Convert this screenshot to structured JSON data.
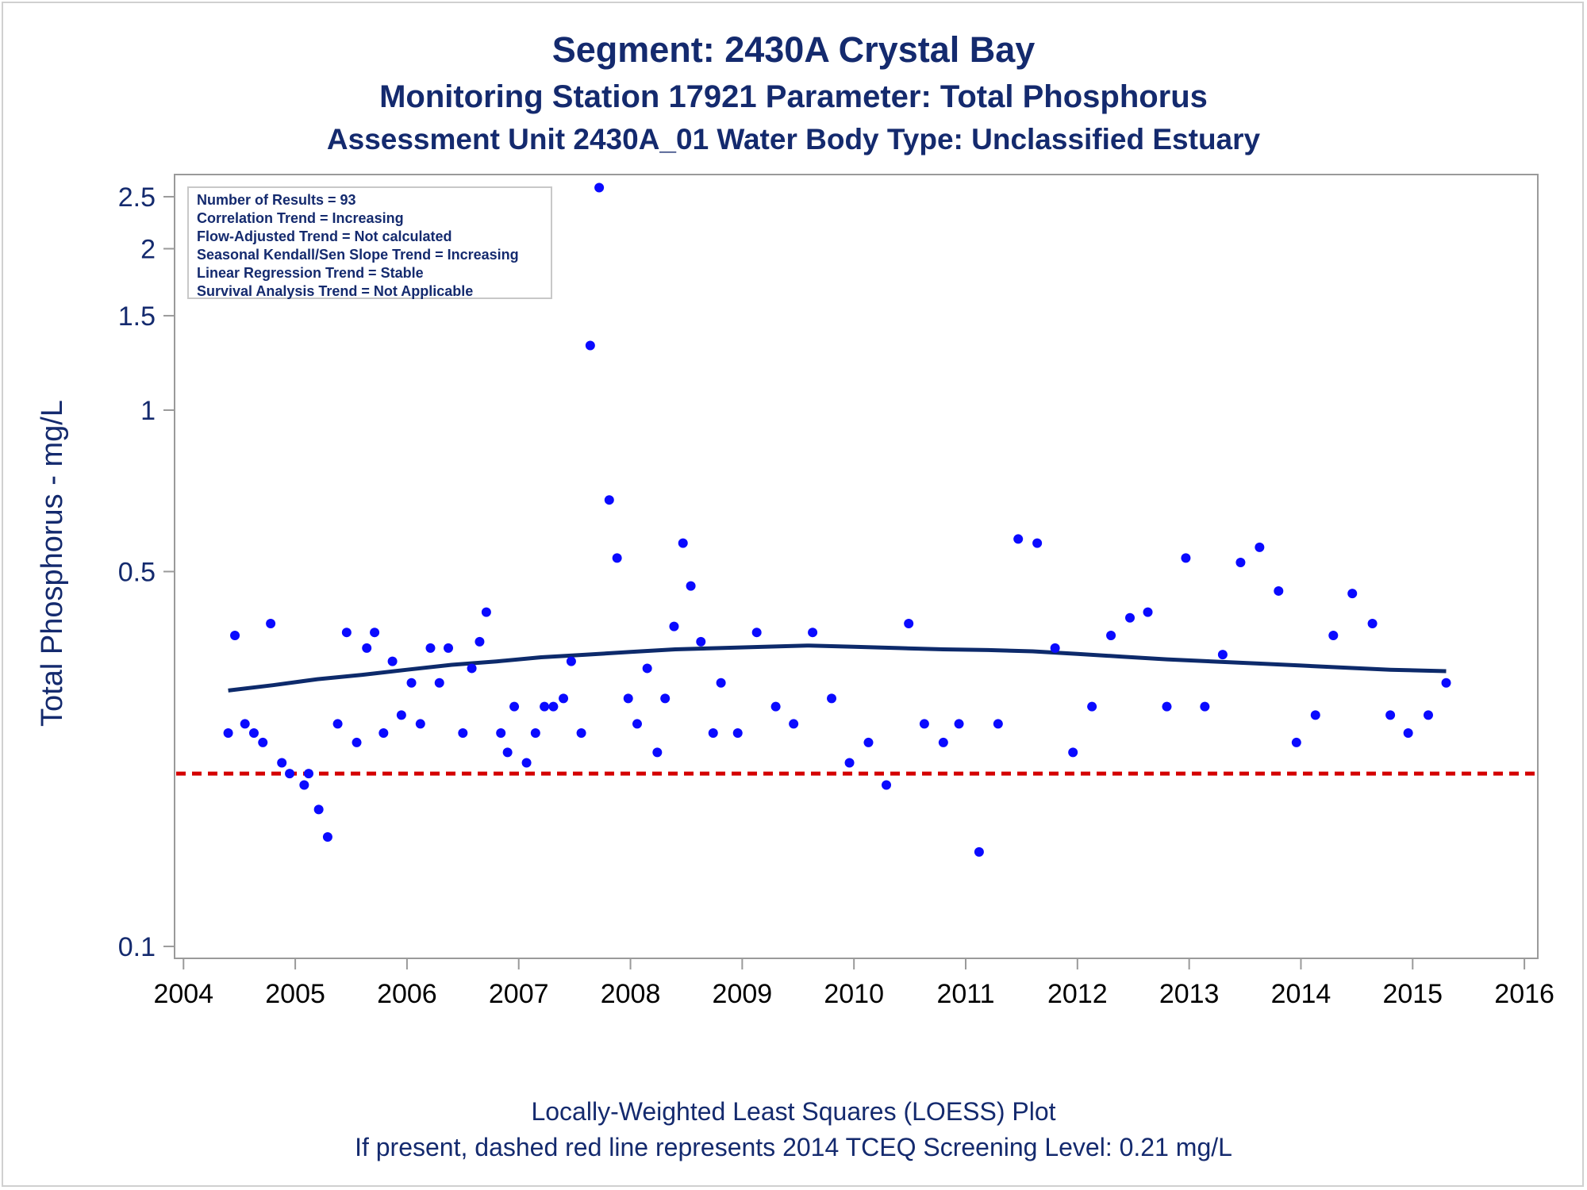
{
  "titles": {
    "line1": "Segment: 2430A  Crystal Bay",
    "line2": "Monitoring Station 17921 Parameter: Total Phosphorus",
    "line3": "Assessment Unit 2430A_01   Water Body Type: Unclassified Estuary"
  },
  "footnotes": {
    "line1": "Locally-Weighted Least Squares (LOESS) Plot",
    "line2": "If present, dashed red line represents 2014 TCEQ Screening Level: 0.21 mg/L"
  },
  "stats_box": {
    "lines": [
      "Number of Results = 93",
      "Correlation Trend = Increasing",
      "Flow-Adjusted Trend = Not calculated",
      "Seasonal Kendall/Sen Slope Trend = Increasing",
      "Linear Regression Trend = Stable",
      "Survival Analysis Trend = Not Applicable"
    ]
  },
  "colors": {
    "title_text": "#142a6e",
    "points": "#0a0aff",
    "loess": "#0d2a6b",
    "screening_line": "#d40000",
    "axis": "#9a9a9a"
  },
  "chart_data": {
    "type": "scatter",
    "ylabel": "Total Phosphorus - mg/L",
    "xlabel": "",
    "yscale": "log",
    "ylim": [
      0.095,
      2.75
    ],
    "xlim": [
      2003.92,
      2016.12
    ],
    "y_ticks": [
      0.1,
      0.5,
      1,
      1.5,
      2,
      2.5
    ],
    "y_tick_labels": [
      "0.1",
      "0.5",
      "1",
      "1.5",
      "2",
      "2.5"
    ],
    "x_ticks": [
      2004,
      2005,
      2006,
      2007,
      2008,
      2009,
      2010,
      2011,
      2012,
      2013,
      2014,
      2015,
      2016
    ],
    "x_tick_labels": [
      "2004",
      "2005",
      "2006",
      "2007",
      "2008",
      "2009",
      "2010",
      "2011",
      "2012",
      "2013",
      "2014",
      "2015",
      "2016"
    ],
    "grid": false,
    "screening_level": 0.21,
    "series": [
      {
        "type": "scatter",
        "x": [
          2004.4,
          2004.46,
          2004.55,
          2004.63,
          2004.71,
          2004.78,
          2004.88,
          2004.95,
          2005.08,
          2005.12,
          2005.21,
          2005.29,
          2005.38,
          2005.46,
          2005.55,
          2005.64,
          2005.71,
          2005.79,
          2005.87,
          2005.95,
          2006.04,
          2006.12,
          2006.21,
          2006.29,
          2006.37,
          2006.5,
          2006.58,
          2006.65,
          2006.71,
          2006.84,
          2006.9,
          2006.96,
          2007.07,
          2007.15,
          2007.23,
          2007.31,
          2007.4,
          2007.47,
          2007.56,
          2007.64,
          2007.72,
          2007.81,
          2007.88,
          2007.98,
          2008.06,
          2008.15,
          2008.24,
          2008.31,
          2008.39,
          2008.47,
          2008.54,
          2008.63,
          2008.74,
          2008.81,
          2008.96,
          2009.13,
          2009.3,
          2009.46,
          2009.63,
          2009.8,
          2009.96,
          2010.13,
          2010.29,
          2010.49,
          2010.63,
          2010.8,
          2010.94,
          2011.12,
          2011.29,
          2011.47,
          2011.64,
          2011.8,
          2011.96,
          2012.13,
          2012.3,
          2012.47,
          2012.63,
          2012.8,
          2012.97,
          2013.14,
          2013.3,
          2013.46,
          2013.63,
          2013.8,
          2013.96,
          2014.13,
          2014.29,
          2014.46,
          2014.64,
          2014.8,
          2014.96,
          2015.14,
          2015.3
        ],
        "y": [
          0.25,
          0.38,
          0.26,
          0.25,
          0.24,
          0.4,
          0.22,
          0.21,
          0.2,
          0.21,
          0.18,
          0.16,
          0.26,
          0.385,
          0.24,
          0.36,
          0.385,
          0.25,
          0.34,
          0.27,
          0.31,
          0.26,
          0.36,
          0.31,
          0.36,
          0.25,
          0.33,
          0.37,
          0.42,
          0.25,
          0.23,
          0.28,
          0.22,
          0.25,
          0.28,
          0.28,
          0.29,
          0.34,
          0.25,
          1.32,
          2.6,
          0.68,
          0.53,
          0.29,
          0.26,
          0.33,
          0.23,
          0.29,
          0.395,
          0.565,
          0.47,
          0.37,
          0.25,
          0.31,
          0.25,
          0.385,
          0.28,
          0.26,
          0.385,
          0.29,
          0.22,
          0.24,
          0.2,
          0.4,
          0.26,
          0.24,
          0.26,
          0.15,
          0.26,
          0.575,
          0.565,
          0.36,
          0.23,
          0.28,
          0.38,
          0.41,
          0.42,
          0.28,
          0.53,
          0.28,
          0.35,
          0.52,
          0.555,
          0.46,
          0.24,
          0.27,
          0.38,
          0.455,
          0.4,
          0.27,
          0.25,
          0.27,
          0.31
        ]
      },
      {
        "name": "LOESS",
        "type": "line",
        "x": [
          2004.4,
          2004.8,
          2005.2,
          2005.6,
          2006.0,
          2006.4,
          2006.8,
          2007.2,
          2007.6,
          2008.0,
          2008.4,
          2008.8,
          2009.2,
          2009.6,
          2010.0,
          2010.4,
          2010.8,
          2011.2,
          2011.6,
          2012.0,
          2012.4,
          2012.8,
          2013.2,
          2013.6,
          2014.0,
          2014.4,
          2014.8,
          2015.3
        ],
        "y": [
          0.3,
          0.307,
          0.315,
          0.321,
          0.328,
          0.335,
          0.34,
          0.346,
          0.35,
          0.354,
          0.358,
          0.36,
          0.362,
          0.364,
          0.362,
          0.36,
          0.358,
          0.357,
          0.355,
          0.351,
          0.347,
          0.343,
          0.34,
          0.337,
          0.334,
          0.331,
          0.328,
          0.326
        ]
      }
    ]
  }
}
